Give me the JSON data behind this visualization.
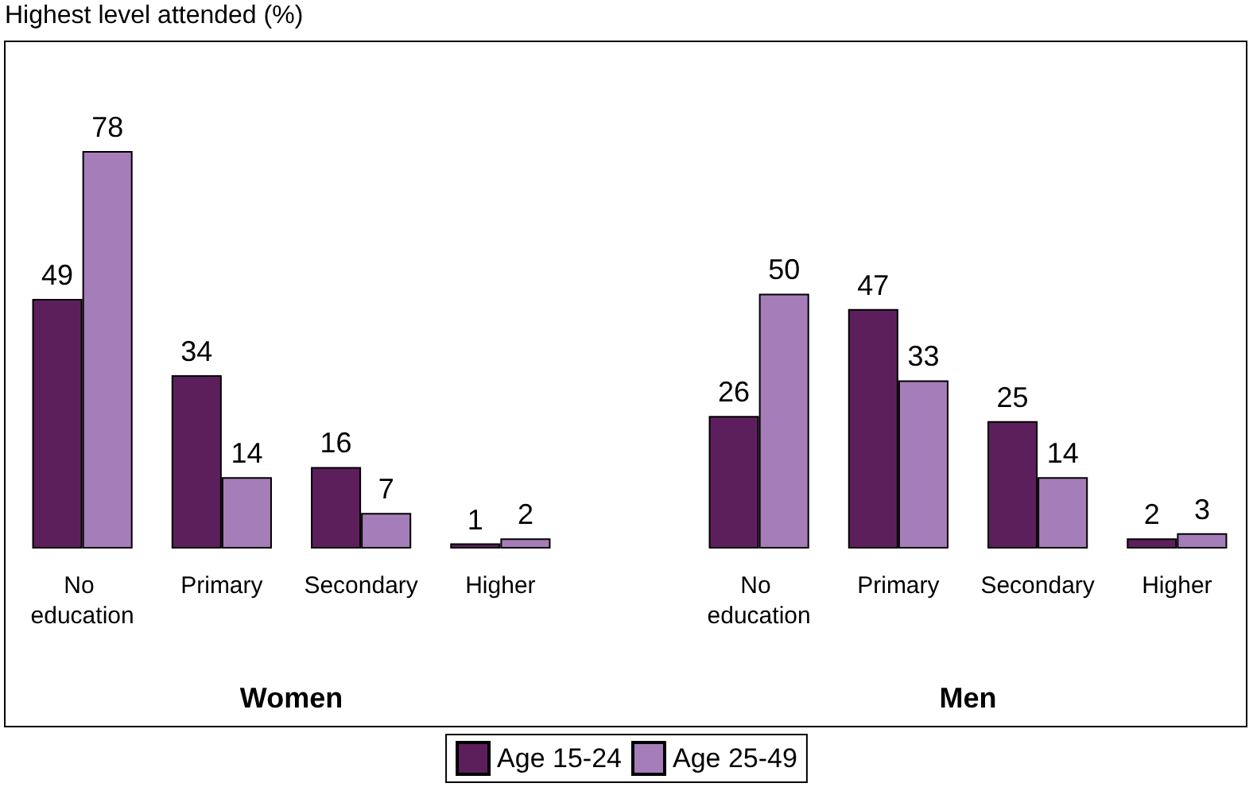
{
  "chart_data": [
    {
      "type": "bar",
      "ylabel": "Highest level attended (%)",
      "xlabel": "Women",
      "categories": [
        "No education",
        "Primary",
        "Secondary",
        "Higher"
      ],
      "series": [
        {
          "name": "Age 15-24",
          "color": "#5c1f5c",
          "values": [
            49,
            34,
            16,
            1
          ]
        },
        {
          "name": "Age 25-49",
          "color": "#a57db8",
          "values": [
            78,
            14,
            7,
            2
          ]
        }
      ],
      "data_labels": true,
      "legend": "bottom",
      "tick_labels": "x"
    },
    {
      "type": "bar",
      "xlabel": "Men",
      "categories": [
        "No education",
        "Primary",
        "Secondary",
        "Higher"
      ],
      "series": [
        {
          "name": "Age 15-24",
          "color": "#5c1f5c",
          "values": [
            26,
            47,
            25,
            2
          ]
        },
        {
          "name": "Age 25-49",
          "color": "#a57db8",
          "values": [
            50,
            33,
            14,
            3
          ]
        }
      ],
      "data_labels": true,
      "legend": "bottom",
      "tick_labels": "x"
    }
  ]
}
